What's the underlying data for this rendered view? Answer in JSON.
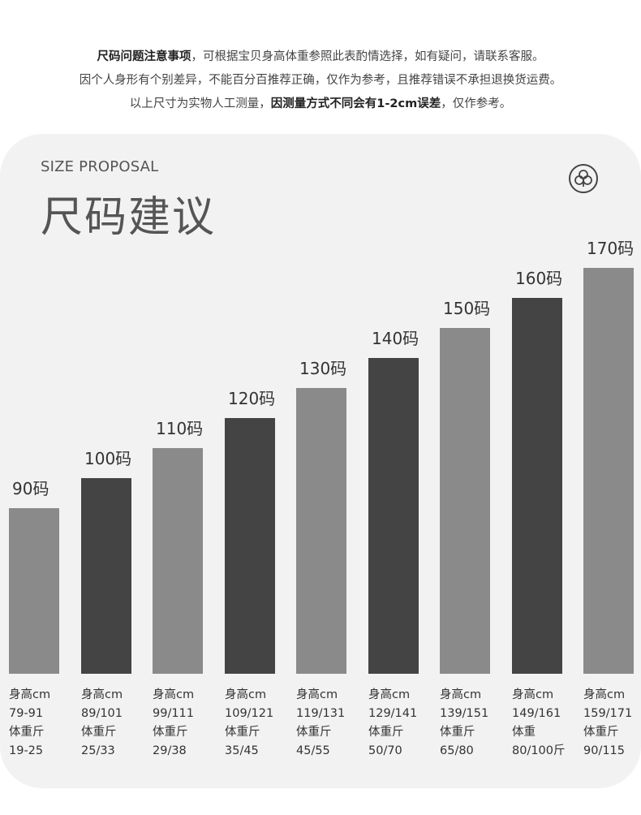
{
  "notice": {
    "line1_bold": "尺码问题注意事项",
    "line1_rest": "，可根据宝贝身高体重参照此表酌情选择，如有疑问，请联系客服。",
    "line2": "因个人身形有个别差异，不能百分百推荐正确，仅作为参考，且推荐错误不承担退换货运费。",
    "line3_pre": "以上尺寸为实物人工测量，",
    "line3_bold": "因测量方式不同会有1-2cm误差",
    "line3_post": "，仅作参考。"
  },
  "card": {
    "subtitle": "SIZE PROPOSAL",
    "title": "尺码建议",
    "logo_icon": "three-petal-circle-icon"
  },
  "chart_data": {
    "type": "bar",
    "categories": [
      "90码",
      "100码",
      "110码",
      "120码",
      "130码",
      "140码",
      "150码",
      "160码",
      "170码"
    ],
    "values": [
      90,
      100,
      110,
      120,
      130,
      140,
      150,
      160,
      170
    ],
    "colors": [
      "#8a8a8a",
      "#444444",
      "#8a8a8a",
      "#444444",
      "#8a8a8a",
      "#444444",
      "#8a8a8a",
      "#444444",
      "#8a8a8a"
    ],
    "details": [
      {
        "height_label": "身高cm",
        "height": "79-91",
        "weight_label": "体重斤",
        "weight": "19-25"
      },
      {
        "height_label": "身高cm",
        "height": "89/101",
        "weight_label": "体重斤",
        "weight": "25/33"
      },
      {
        "height_label": "身高cm",
        "height": "99/111",
        "weight_label": "体重斤",
        "weight": "29/38"
      },
      {
        "height_label": "身高cm",
        "height": "109/121",
        "weight_label": "体重斤",
        "weight": "35/45"
      },
      {
        "height_label": "身高cm",
        "height": "119/131",
        "weight_label": "体重斤",
        "weight": "45/55"
      },
      {
        "height_label": "身高cm",
        "height": "129/141",
        "weight_label": "体重斤",
        "weight": "50/70"
      },
      {
        "height_label": "身高cm",
        "height": "139/151",
        "weight_label": "体重斤",
        "weight": "65/80"
      },
      {
        "height_label": "身高cm",
        "height": "149/161",
        "weight_label": "体重",
        "weight": "80/100斤"
      },
      {
        "height_label": "身高cm",
        "height": "159/171",
        "weight_label": "体重斤",
        "weight": "90/115"
      }
    ],
    "title": "尺码建议",
    "xlabel": "",
    "ylabel": "",
    "grid": false,
    "legend": "none"
  }
}
